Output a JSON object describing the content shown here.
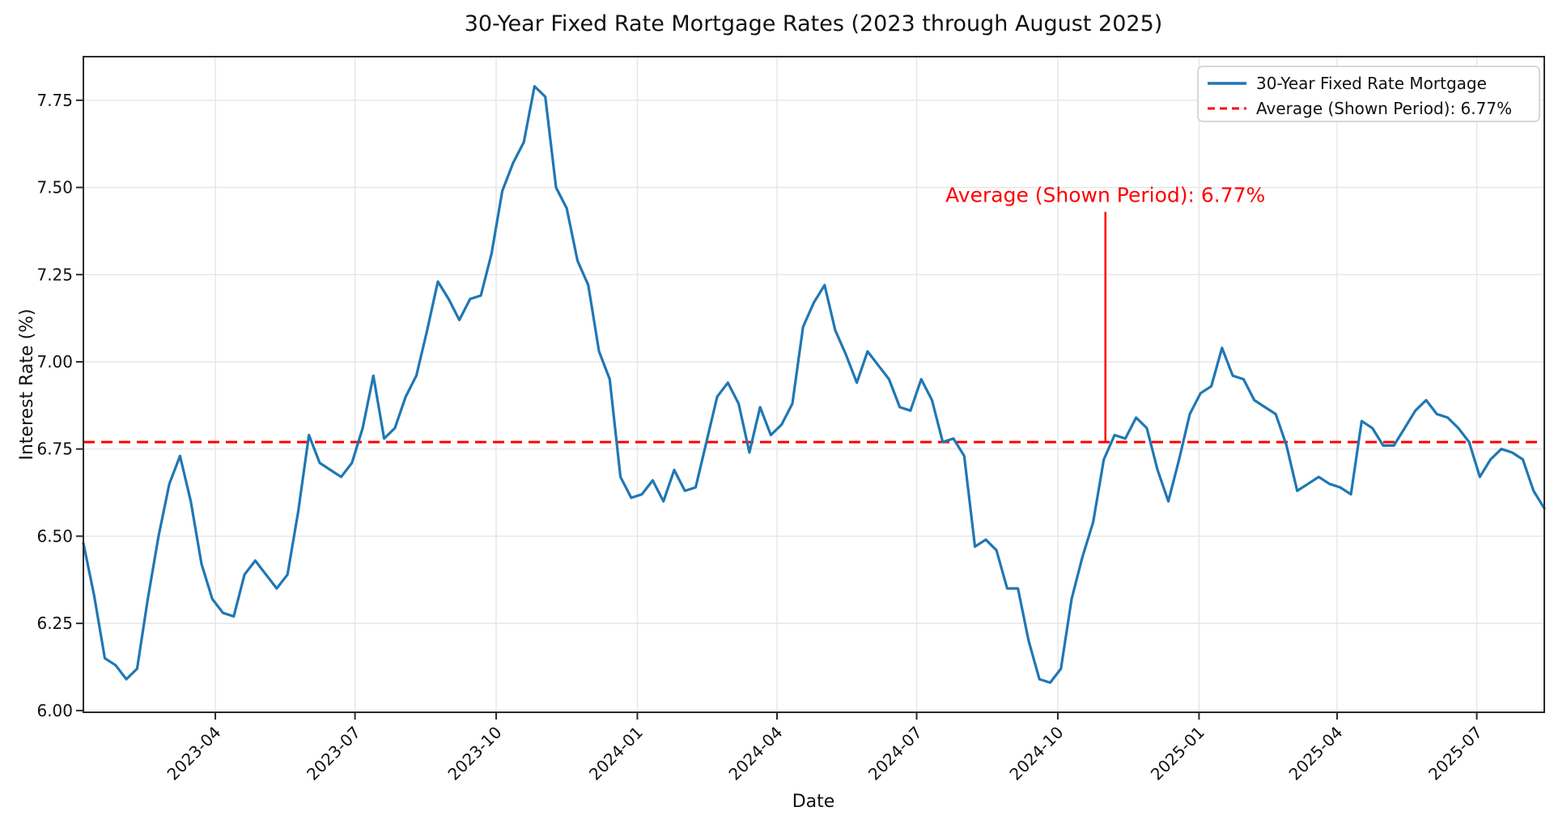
{
  "chart_data": {
    "type": "line",
    "title": "30-Year Fixed Rate Mortgage Rates (2023 through August 2025)",
    "xlabel": "Date",
    "ylabel": "Interest Rate (%)",
    "background_color": "#ffffff",
    "grid": true,
    "grid_color": "#e6e6e6",
    "legend_location": "upper right",
    "ylim": [
      5.995,
      7.875
    ],
    "y_tick_labels": [
      "6.00",
      "6.25",
      "6.50",
      "6.75",
      "7.00",
      "7.25",
      "7.50",
      "7.75"
    ],
    "x_tick_labels": [
      "2023-04",
      "2023-07",
      "2023-10",
      "2024-01",
      "2024-04",
      "2024-07",
      "2024-10",
      "2025-01",
      "2025-04",
      "2025-07"
    ],
    "x_start_date": "2023-01-05",
    "x_interval_days": 7,
    "series": [
      {
        "name": "30-Year Fixed Rate Mortgage",
        "color": "#1f77b4",
        "line_style": "solid",
        "values": [
          6.48,
          6.33,
          6.15,
          6.13,
          6.09,
          6.12,
          6.32,
          6.5,
          6.65,
          6.73,
          6.6,
          6.42,
          6.32,
          6.28,
          6.27,
          6.39,
          6.43,
          6.39,
          6.35,
          6.39,
          6.57,
          6.79,
          6.71,
          6.69,
          6.67,
          6.71,
          6.81,
          6.96,
          6.78,
          6.81,
          6.9,
          6.96,
          7.09,
          7.23,
          7.18,
          7.12,
          7.18,
          7.19,
          7.31,
          7.49,
          7.57,
          7.63,
          7.79,
          7.76,
          7.5,
          7.44,
          7.29,
          7.22,
          7.03,
          6.95,
          6.67,
          6.61,
          6.62,
          6.66,
          6.6,
          6.69,
          6.63,
          6.64,
          6.77,
          6.9,
          6.94,
          6.88,
          6.74,
          6.87,
          6.79,
          6.82,
          6.88,
          7.1,
          7.17,
          7.22,
          7.09,
          7.02,
          6.94,
          7.03,
          6.99,
          6.95,
          6.87,
          6.86,
          6.95,
          6.89,
          6.77,
          6.78,
          6.73,
          6.47,
          6.49,
          6.46,
          6.35,
          6.35,
          6.2,
          6.09,
          6.08,
          6.12,
          6.32,
          6.44,
          6.54,
          6.72,
          6.79,
          6.78,
          6.84,
          6.81,
          6.69,
          6.6,
          6.72,
          6.85,
          6.91,
          6.93,
          7.04,
          6.96,
          6.95,
          6.89,
          6.87,
          6.85,
          6.76,
          6.63,
          6.65,
          6.67,
          6.65,
          6.64,
          6.62,
          6.83,
          6.81,
          6.76,
          6.76,
          6.81,
          6.86,
          6.89,
          6.85,
          6.84,
          6.81,
          6.77,
          6.67,
          6.72,
          6.75,
          6.74,
          6.72,
          6.63,
          6.58
        ]
      },
      {
        "name": "Average (Shown Period): 6.77%",
        "color": "#ff0000",
        "line_style": "dashed",
        "value": 6.77
      }
    ],
    "average_value": 6.77,
    "annotation": {
      "text": "Average (Shown Period): 6.77%",
      "color": "#ff0000",
      "x_date": "2024-11-01",
      "line_top_value": 7.43,
      "line_bottom_value": 6.77
    }
  }
}
